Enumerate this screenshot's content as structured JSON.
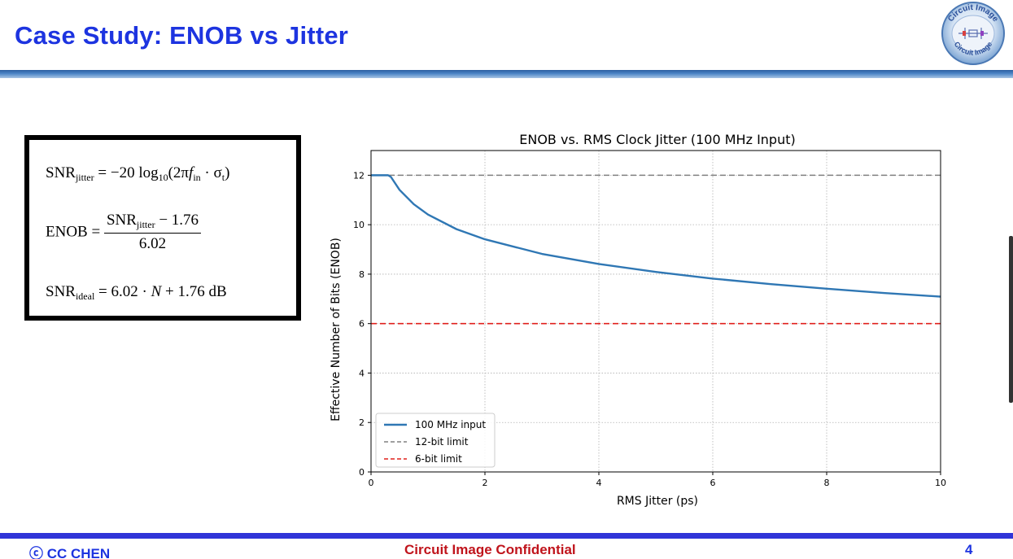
{
  "slide": {
    "title": "Case Study: ENOB vs Jitter",
    "logo_text_top": "Circuit Image",
    "logo_text_bottom": "Circuit Image"
  },
  "equations": {
    "eq1": {
      "lhs": "SNR",
      "lhs_sub": "jitter",
      "rhs": "= −20 log",
      "log_sub": "10",
      "arg_open": "(2π",
      "f": "f",
      "f_sub": "in",
      "arg_close": "· σ",
      "sigma_sub": "t",
      "close": ")"
    },
    "eq2": {
      "lhs": "ENOB =",
      "num_main": "SNR",
      "num_sub": "jitter",
      "num_rest": " − 1.76",
      "den": "6.02"
    },
    "eq3": {
      "lhs": "SNR",
      "lhs_sub": "ideal",
      "rhs_a": " = 6.02 · ",
      "N": "N",
      "rhs_b": " + 1.76 dB"
    }
  },
  "footer": {
    "left": "ⓒ CC CHEN",
    "center": "Circuit Image Confidential",
    "page": "4"
  },
  "colors": {
    "title_blue": "#1d34e0",
    "footer_red": "#c0141c",
    "series_blue": "#2f77b4",
    "limit_gray": "#808080",
    "limit_red": "#e0201c"
  },
  "chart_data": {
    "type": "line",
    "title": "ENOB vs. RMS Clock Jitter (100 MHz Input)",
    "xlabel": "RMS Jitter (ps)",
    "ylabel": "Effective Number of Bits (ENOB)",
    "xlim": [
      0,
      10
    ],
    "ylim": [
      0,
      13
    ],
    "xticks": [
      0,
      2,
      4,
      6,
      8,
      10
    ],
    "yticks": [
      0,
      2,
      4,
      6,
      8,
      10,
      12
    ],
    "grid": true,
    "legend_position": "lower-left",
    "series": [
      {
        "name": "100 MHz input",
        "style": "solid",
        "x": [
          0,
          0.3,
          0.35,
          0.5,
          0.75,
          1,
          1.5,
          2,
          3,
          4,
          5,
          6,
          7,
          8,
          9,
          10
        ],
        "values": [
          12,
          12,
          11.93,
          11.41,
          10.83,
          10.41,
          9.82,
          9.41,
          8.82,
          8.41,
          8.09,
          7.82,
          7.6,
          7.41,
          7.24,
          7.09
        ]
      },
      {
        "name": "12-bit limit",
        "style": "dashed",
        "x": [
          0,
          10
        ],
        "values": [
          12,
          12
        ]
      },
      {
        "name": "6-bit limit",
        "style": "dashed",
        "x": [
          0,
          10
        ],
        "values": [
          6,
          6
        ]
      }
    ]
  }
}
